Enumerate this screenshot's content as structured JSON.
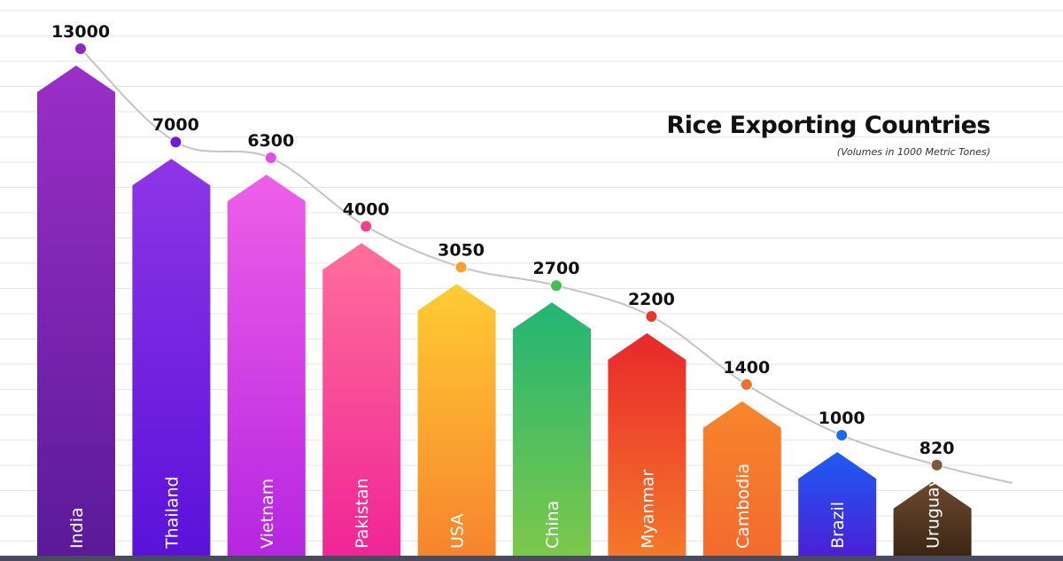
{
  "chart_data": {
    "type": "bar",
    "title": "Rice Exporting Countries",
    "subtitle": "(Volumes in 1000 Metric Tones)",
    "categories": [
      "India",
      "Thailand",
      "Vietnam",
      "Pakistan",
      "USA",
      "China",
      "Myanmar",
      "Cambodia",
      "Brazil",
      "Uruguay"
    ],
    "values": [
      13000,
      7000,
      6300,
      4000,
      3050,
      2700,
      2200,
      1400,
      1000,
      820
    ],
    "grid": true,
    "trend_line": true,
    "colors": [
      {
        "top": "#9b2fc7",
        "bottom": "#5b1a9a",
        "dot": "#8a2bbf"
      },
      {
        "top": "#8e35e6",
        "bottom": "#5a12d9",
        "dot": "#6a1fd6"
      },
      {
        "top": "#ee5fe8",
        "bottom": "#b526e0",
        "dot": "#e34ee8"
      },
      {
        "top": "#ff6f9a",
        "bottom": "#f02596",
        "dot": "#f33f8c"
      },
      {
        "top": "#ffcc33",
        "bottom": "#f7842d",
        "dot": "#f7a12f"
      },
      {
        "top": "#22b574",
        "bottom": "#7cc84a",
        "dot": "#3fbe55"
      },
      {
        "top": "#e8282b",
        "bottom": "#f5782a",
        "dot": "#e9392c"
      },
      {
        "top": "#f8852c",
        "bottom": "#f26b2e",
        "dot": "#f3702b"
      },
      {
        "top": "#1d5cf2",
        "bottom": "#4b1fd8",
        "dot": "#1e67f0"
      },
      {
        "top": "#6d4a2e",
        "bottom": "#3b2614",
        "dot": "#7a5a3c"
      }
    ],
    "footer_color": "#4a4a5e",
    "grid_color": "#e6e6e6",
    "line_color": "#c4c4c4"
  }
}
